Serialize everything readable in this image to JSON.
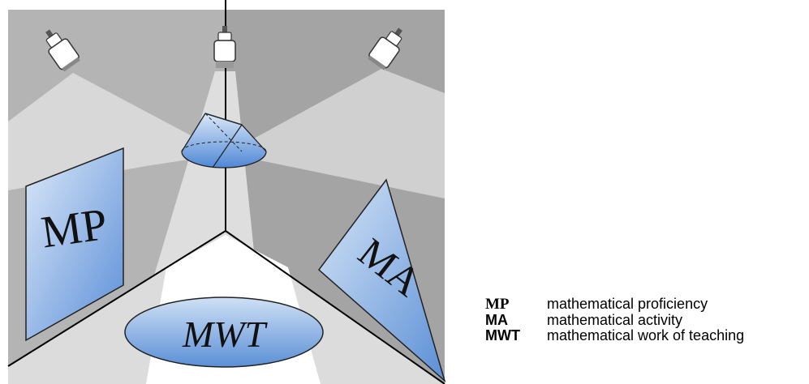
{
  "diagram": {
    "labels": {
      "left_panel": "MP",
      "right_panel": "MA",
      "floor_ellipse": "MWT"
    },
    "lights": [
      "spotlight-left",
      "spotlight-center",
      "spotlight-right"
    ],
    "colors": {
      "wall_dark": "#a6a6a6",
      "wall_mid": "#c4c4c4",
      "beam": "#dcdcdc",
      "floor": "#ffffff",
      "shape_fill_light": "#cfe0f5",
      "shape_fill_dark": "#5b8fd6",
      "outline": "#000000"
    }
  },
  "legend": [
    {
      "abbr": "MP",
      "desc": "mathematical proficiency"
    },
    {
      "abbr": "MA",
      "desc": "mathematical activity"
    },
    {
      "abbr": "MWT",
      "desc": "mathematical work of teaching"
    }
  ]
}
